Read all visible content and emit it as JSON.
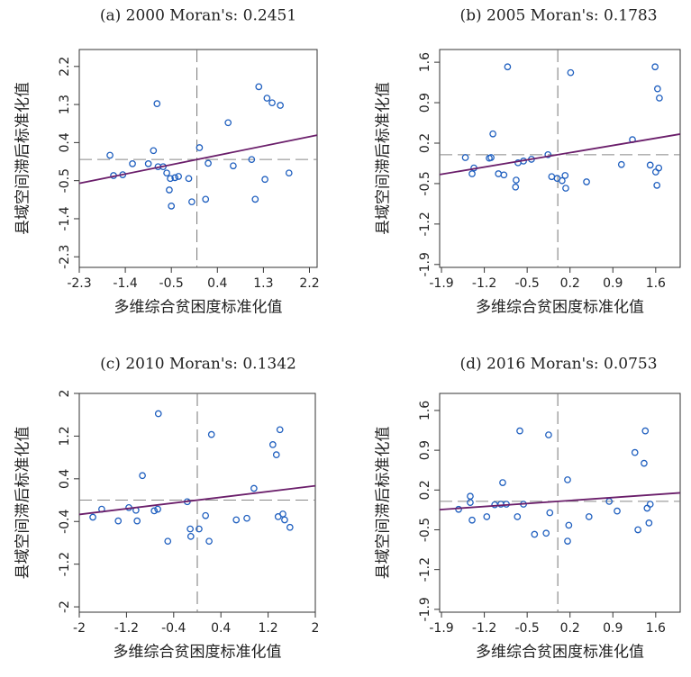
{
  "chart_data": [
    {
      "type": "scatter",
      "title": "(a) 2000 Moran's: 0.2451",
      "moran_i": 0.2451,
      "x_label": "多维综合贫困度标准化值",
      "y_label": "县域空间滞后标准化值",
      "color": "#1f5fbf",
      "line_color": "#6b1f6b",
      "xlim": [
        -2.3,
        2.35
      ],
      "ylim": [
        -2.55,
        2.6
      ],
      "xticks": [
        -2.3,
        -1.4,
        -0.5,
        0.4,
        1.3,
        2.2
      ],
      "yticks": [
        -2.3,
        -1.4,
        -0.5,
        0.4,
        1.3,
        2.2
      ],
      "x": [
        -1.7,
        -1.63,
        -1.45,
        -1.26,
        -0.95,
        -0.85,
        -0.76,
        -0.66,
        -0.59,
        -0.52,
        -0.43,
        -0.54,
        -0.5,
        -0.36,
        -0.16,
        -0.1,
        0.05,
        0.17,
        0.22,
        0.61,
        0.71,
        1.07,
        1.14,
        1.21,
        1.37,
        1.47,
        1.63,
        1.33,
        1.8,
        -0.78
      ],
      "values": [
        0.1,
        -0.38,
        -0.36,
        -0.1,
        -0.1,
        0.21,
        -0.17,
        -0.17,
        -0.32,
        -0.45,
        -0.43,
        -0.72,
        -1.1,
        -0.4,
        -0.45,
        -1.0,
        0.28,
        -0.94,
        -0.09,
        0.87,
        -0.15,
        0,
        -0.94,
        1.72,
        1.45,
        1.34,
        1.28,
        -0.47,
        -0.32,
        1.32
      ]
    },
    {
      "type": "scatter",
      "title": "(b) 2005 Moran's: 0.1783",
      "moran_i": 0.1783,
      "x_label": "多维综合贫困度标准化值",
      "y_label": "县域空间滞后标准化值",
      "color": "#1f5fbf",
      "line_color": "#6b1f6b",
      "xlim": [
        -1.93,
        2.0
      ],
      "ylim": [
        -1.95,
        1.82
      ],
      "xticks": [
        -1.9,
        -1.2,
        -0.5,
        0.2,
        0.9,
        1.6
      ],
      "yticks": [
        -1.9,
        -1.2,
        -0.5,
        0.2,
        0.9,
        1.6
      ],
      "x": [
        -1.51,
        -1.4,
        -1.37,
        -1.12,
        -1.06,
        -1.09,
        -0.97,
        -0.88,
        -0.69,
        -0.68,
        -0.65,
        -0.56,
        -0.43,
        -0.82,
        -0.16,
        -0.1,
        -0.01,
        0.07,
        0.12,
        0.13,
        0.21,
        0.47,
        1.04,
        1.22,
        1.51,
        1.59,
        1.63,
        1.66,
        1.6,
        1.65,
        1.62
      ],
      "values": [
        -0.05,
        -0.33,
        -0.23,
        -0.06,
        0.36,
        -0.05,
        -0.33,
        -0.35,
        -0.56,
        -0.44,
        -0.14,
        -0.11,
        -0.08,
        1.52,
        0,
        -0.38,
        -0.41,
        -0.45,
        -0.36,
        -0.58,
        1.42,
        -0.47,
        -0.17,
        0.26,
        -0.18,
        1.52,
        1.14,
        0.98,
        -0.3,
        -0.23,
        -0.53
      ]
    },
    {
      "type": "scatter",
      "title": "(c) 2010 Moran's: 0.1342",
      "moran_i": 0.1342,
      "x_label": "多维综合贫困度标准化值",
      "y_label": "县域空间滞后标准化值",
      "color": "#1f5fbf",
      "line_color": "#6b1f6b",
      "xlim": [
        -2,
        2
      ],
      "ylim": [
        -2.1,
        2.0
      ],
      "xticks": [
        -2,
        -1.2,
        -0.4,
        0.4,
        1.2,
        2
      ],
      "yticks": [
        -2,
        -1.2,
        -0.4,
        0.4,
        1.2,
        2
      ],
      "x": [
        -1.77,
        -1.62,
        -1.34,
        -1.16,
        -1.04,
        -1.02,
        -0.93,
        -0.73,
        -0.67,
        -0.66,
        -0.5,
        -0.17,
        -0.12,
        -0.11,
        0.03,
        0.14,
        0.2,
        0.24,
        0.66,
        0.84,
        0.96,
        1.28,
        1.34,
        1.4,
        1.37,
        1.45,
        1.48,
        1.57
      ],
      "values": [
        -0.32,
        -0.17,
        -0.39,
        -0.14,
        -0.19,
        -0.39,
        0.46,
        -0.2,
        -0.17,
        1.62,
        -0.77,
        -0.03,
        -0.54,
        -0.68,
        -0.54,
        -0.29,
        -0.77,
        1.23,
        -0.37,
        -0.34,
        0.22,
        1.04,
        0.85,
        1.32,
        -0.31,
        -0.26,
        -0.37,
        -0.51
      ]
    },
    {
      "type": "scatter",
      "title": "(d) 2016 Moran's: 0.0753",
      "moran_i": 0.0753,
      "x_label": "多维综合贫困度标准化值",
      "y_label": "县域空间滞后标准化值",
      "color": "#1f5fbf",
      "line_color": "#6b1f6b",
      "xlim": [
        -1.93,
        2.0
      ],
      "ylim": [
        -1.95,
        1.9
      ],
      "xticks": [
        -1.9,
        -1.2,
        -0.5,
        0.2,
        0.9,
        1.6
      ],
      "yticks": [
        -1.9,
        -1.2,
        -0.5,
        0.2,
        0.9,
        1.6
      ],
      "x": [
        -1.62,
        -1.43,
        -1.43,
        -1.4,
        -1.16,
        -1.03,
        -0.93,
        -0.9,
        -0.84,
        -0.66,
        -0.62,
        -0.56,
        -0.38,
        -0.19,
        -0.13,
        -0.15,
        0.16,
        0.18,
        0.16,
        0.51,
        0.84,
        0.97,
        1.26,
        1.41,
        1.43,
        1.31,
        1.46,
        1.49,
        1.51
      ],
      "values": [
        -0.14,
        0.09,
        -0.02,
        -0.33,
        -0.27,
        -0.06,
        -0.05,
        0.33,
        -0.05,
        -0.27,
        1.24,
        -0.05,
        -0.58,
        -0.56,
        -0.2,
        1.17,
        0.38,
        -0.42,
        -0.7,
        -0.27,
        0,
        -0.17,
        0.86,
        0.67,
        1.24,
        -0.5,
        -0.12,
        -0.38,
        -0.05
      ]
    }
  ]
}
